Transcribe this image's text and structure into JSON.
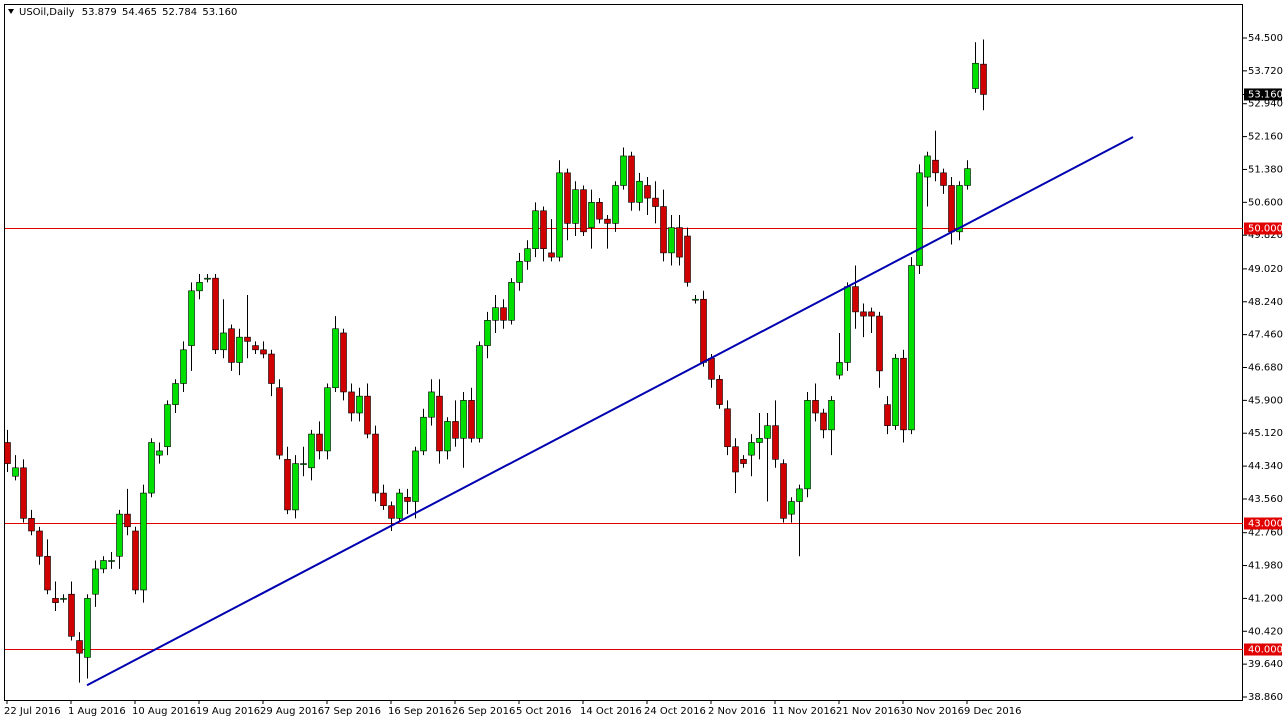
{
  "chart_data": {
    "type": "candlestick",
    "title": "USOil,Daily",
    "header_values": [
      "53.879",
      "54.465",
      "52.784",
      "53.160"
    ],
    "categories": [
      "22 Jul 2016",
      null,
      null,
      null,
      null,
      null,
      null,
      null,
      "1 Aug 2016",
      null,
      null,
      null,
      null,
      null,
      null,
      null,
      "10 Aug 2016",
      null,
      null,
      null,
      null,
      null,
      null,
      null,
      "19 Aug 2016",
      null,
      null,
      null,
      null,
      null,
      null,
      null,
      "29 Aug 2016",
      null,
      null,
      null,
      null,
      null,
      null,
      null,
      "7 Sep 2016",
      null,
      null,
      null,
      null,
      null,
      null,
      null,
      "16 Sep 2016",
      null,
      null,
      null,
      null,
      null,
      null,
      null,
      "26 Sep 2016",
      null,
      null,
      null,
      null,
      null,
      null,
      null,
      "5 Oct 2016",
      null,
      null,
      null,
      null,
      null,
      null,
      null,
      "14 Oct 2016",
      null,
      null,
      null,
      null,
      null,
      null,
      null,
      "24 Oct 2016",
      null,
      null,
      null,
      null,
      null,
      null,
      null,
      "2 Nov 2016",
      null,
      null,
      null,
      null,
      null,
      null,
      null,
      "11 Nov 2016",
      null,
      null,
      null,
      null,
      null,
      null,
      null,
      "21 Nov 2016",
      null,
      null,
      null,
      null,
      null,
      null,
      null,
      "30 Nov 2016",
      null,
      null,
      null,
      null,
      null,
      null,
      null,
      "9 Dec 2016",
      null,
      null
    ],
    "open": [
      44.9,
      44.1,
      44.3,
      43.1,
      42.8,
      42.2,
      41.2,
      41.2,
      41.3,
      40.2,
      39.8,
      41.3,
      41.9,
      42.1,
      42.2,
      43.2,
      42.8,
      41.4,
      43.7,
      44.6,
      44.8,
      45.8,
      46.3,
      47.2,
      48.5,
      48.8,
      48.8,
      47.1,
      47.6,
      46.8,
      47.4,
      47.2,
      47.1,
      47.0,
      46.2,
      44.5,
      43.3,
      44.4,
      44.3,
      45.1,
      44.7,
      46.2,
      47.5,
      46.1,
      45.6,
      46.0,
      45.1,
      43.7,
      43.4,
      43.1,
      43.6,
      43.5,
      44.7,
      45.5,
      46.0,
      44.7,
      45.4,
      45.0,
      45.9,
      45.0,
      47.2,
      47.8,
      48.1,
      47.8,
      48.7,
      49.2,
      49.5,
      50.4,
      49.4,
      49.3,
      51.3,
      50.1,
      50.9,
      50.0,
      50.6,
      50.2,
      50.1,
      51.0,
      51.7,
      50.6,
      51.0,
      50.7,
      50.5,
      49.4,
      50.0,
      49.8,
      48.3,
      48.3,
      46.9,
      46.4,
      45.7,
      44.8,
      44.5,
      44.6,
      44.9,
      45.0,
      45.3,
      44.4,
      43.2,
      43.5,
      43.8,
      45.9,
      45.6,
      45.2,
      46.5,
      46.8,
      48.6,
      48.0,
      48.0,
      47.9,
      45.8,
      45.3,
      46.9,
      45.2,
      49.1,
      51.2,
      51.6,
      51.3,
      51.0,
      49.9,
      51.0,
      53.3,
      53.879
    ],
    "high": [
      45.2,
      44.6,
      44.5,
      43.3,
      42.9,
      42.6,
      41.6,
      41.3,
      41.6,
      40.4,
      41.3,
      42.1,
      42.2,
      42.3,
      43.3,
      43.8,
      42.9,
      43.9,
      45.0,
      44.9,
      45.9,
      46.4,
      47.3,
      48.7,
      48.9,
      48.9,
      48.9,
      48.3,
      47.7,
      47.6,
      48.4,
      47.3,
      47.3,
      47.1,
      46.4,
      44.8,
      44.6,
      44.8,
      45.2,
      45.4,
      46.3,
      47.9,
      47.6,
      46.3,
      46.2,
      46.3,
      45.3,
      43.9,
      43.5,
      43.8,
      43.8,
      44.8,
      45.7,
      46.4,
      46.4,
      45.5,
      45.9,
      46.1,
      46.2,
      47.3,
      48.0,
      48.4,
      48.3,
      48.8,
      49.4,
      49.7,
      50.6,
      50.5,
      50.2,
      51.6,
      51.4,
      51.1,
      51.0,
      50.9,
      50.7,
      50.3,
      51.1,
      51.9,
      51.8,
      51.3,
      51.2,
      51.1,
      50.9,
      50.3,
      50.3,
      50.0,
      48.4,
      48.5,
      47.0,
      46.5,
      45.9,
      45.0,
      44.6,
      45.1,
      45.6,
      45.6,
      45.9,
      44.5,
      43.6,
      43.9,
      46.1,
      46.3,
      45.7,
      46.0,
      47.5,
      48.7,
      49.1,
      48.2,
      48.1,
      48.0,
      46.0,
      47.0,
      47.1,
      49.3,
      51.5,
      51.8,
      52.3,
      51.4,
      51.2,
      51.1,
      51.6,
      54.4,
      54.465
    ],
    "low": [
      44.2,
      44.0,
      43.0,
      42.7,
      42.0,
      41.3,
      40.9,
      41.1,
      40.2,
      39.2,
      39.3,
      41.0,
      41.8,
      41.9,
      41.9,
      42.7,
      41.3,
      41.1,
      43.6,
      44.4,
      44.6,
      45.6,
      46.1,
      46.6,
      48.3,
      48.7,
      47.0,
      46.9,
      46.6,
      46.5,
      46.9,
      47.0,
      46.9,
      46.0,
      44.5,
      43.2,
      43.1,
      44.1,
      44.0,
      44.5,
      44.5,
      46.1,
      45.9,
      45.4,
      45.4,
      45.0,
      43.5,
      43.3,
      42.8,
      43.0,
      43.2,
      43.1,
      44.6,
      45.3,
      44.4,
      44.5,
      44.8,
      44.3,
      44.9,
      44.9,
      46.9,
      47.5,
      47.6,
      47.7,
      48.5,
      49.0,
      49.3,
      49.2,
      49.2,
      49.2,
      49.7,
      49.8,
      49.8,
      49.5,
      50.1,
      49.5,
      49.9,
      50.9,
      50.4,
      50.4,
      50.3,
      50.1,
      49.2,
      49.1,
      49.1,
      48.6,
      48.2,
      46.7,
      46.2,
      45.7,
      44.6,
      43.7,
      44.3,
      44.1,
      44.5,
      43.5,
      44.3,
      43.0,
      43.0,
      42.2,
      43.6,
      45.4,
      45.0,
      44.6,
      46.4,
      46.6,
      47.6,
      47.4,
      47.5,
      46.2,
      45.1,
      45.2,
      44.9,
      45.1,
      48.9,
      50.5,
      51.1,
      50.8,
      49.6,
      49.7,
      50.9,
      53.2,
      52.784
    ],
    "close": [
      44.4,
      44.3,
      43.1,
      42.8,
      42.2,
      41.4,
      41.1,
      41.2,
      40.3,
      39.9,
      41.2,
      41.9,
      42.1,
      42.1,
      43.2,
      42.9,
      41.4,
      43.7,
      44.9,
      44.7,
      45.8,
      46.3,
      47.1,
      48.5,
      48.7,
      48.8,
      47.1,
      47.5,
      46.8,
      47.4,
      47.3,
      47.1,
      47.0,
      46.3,
      44.6,
      43.3,
      44.4,
      44.4,
      45.1,
      44.7,
      46.2,
      47.6,
      46.1,
      45.6,
      46.0,
      45.1,
      43.7,
      43.4,
      43.1,
      43.7,
      43.5,
      44.7,
      45.5,
      46.1,
      44.7,
      45.4,
      45.0,
      45.9,
      45.0,
      47.2,
      47.8,
      48.1,
      47.8,
      48.7,
      49.2,
      49.5,
      50.4,
      49.5,
      49.3,
      51.3,
      50.1,
      50.9,
      49.9,
      50.6,
      50.2,
      50.1,
      51.0,
      51.7,
      50.6,
      51.1,
      50.7,
      50.5,
      49.4,
      50.0,
      49.3,
      48.7,
      48.3,
      46.8,
      46.4,
      45.8,
      44.8,
      44.2,
      44.4,
      44.9,
      45.0,
      45.3,
      44.5,
      43.1,
      43.5,
      43.8,
      45.9,
      45.6,
      45.2,
      45.9,
      46.8,
      48.6,
      48.0,
      47.9,
      47.9,
      46.6,
      45.3,
      46.9,
      45.2,
      49.1,
      51.3,
      51.7,
      51.3,
      51.0,
      49.9,
      51.0,
      51.4,
      53.9,
      53.16
    ],
    "up_color": "#00e000",
    "down_color": "#d00000",
    "xlim": [
      -0.25,
      154.5
    ],
    "ylim": [
      38.789,
      55.283
    ],
    "yticks": [
      {
        "value": 54.5,
        "label": "54.500"
      },
      {
        "value": 53.72,
        "label": "53.720"
      },
      {
        "value": 52.94,
        "label": "52.940"
      },
      {
        "value": 52.16,
        "label": "52.160"
      },
      {
        "value": 51.38,
        "label": "51.380"
      },
      {
        "value": 50.6,
        "label": "50.600"
      },
      {
        "value": 49.82,
        "label": "49.820"
      },
      {
        "value": 49.02,
        "label": "49.020"
      },
      {
        "value": 48.24,
        "label": "48.240"
      },
      {
        "value": 47.46,
        "label": "47.460"
      },
      {
        "value": 46.68,
        "label": "46.680"
      },
      {
        "value": 45.9,
        "label": "45.900"
      },
      {
        "value": 45.12,
        "label": "45.120"
      },
      {
        "value": 44.34,
        "label": "44.340"
      },
      {
        "value": 43.56,
        "label": "43.560"
      },
      {
        "value": 42.76,
        "label": "42.760"
      },
      {
        "value": 41.98,
        "label": "41.980"
      },
      {
        "value": 41.2,
        "label": "41.200"
      },
      {
        "value": 40.42,
        "label": "40.420"
      },
      {
        "value": 39.64,
        "label": "39.640"
      },
      {
        "value": 38.86,
        "label": "38.860"
      }
    ],
    "levels": [
      {
        "value": 50,
        "label": "50.000",
        "color": "#e00000"
      },
      {
        "value": 43,
        "label": "43.000",
        "color": "#e00000"
      },
      {
        "value": 40,
        "label": "40.000",
        "color": "#e00000"
      }
    ],
    "last_price": {
      "value": 53.16,
      "label": "53.160"
    },
    "trendline": {
      "x": [
        10,
        140.75
      ],
      "values": [
        39.14,
        52.15
      ],
      "color": "#0000b0"
    }
  }
}
